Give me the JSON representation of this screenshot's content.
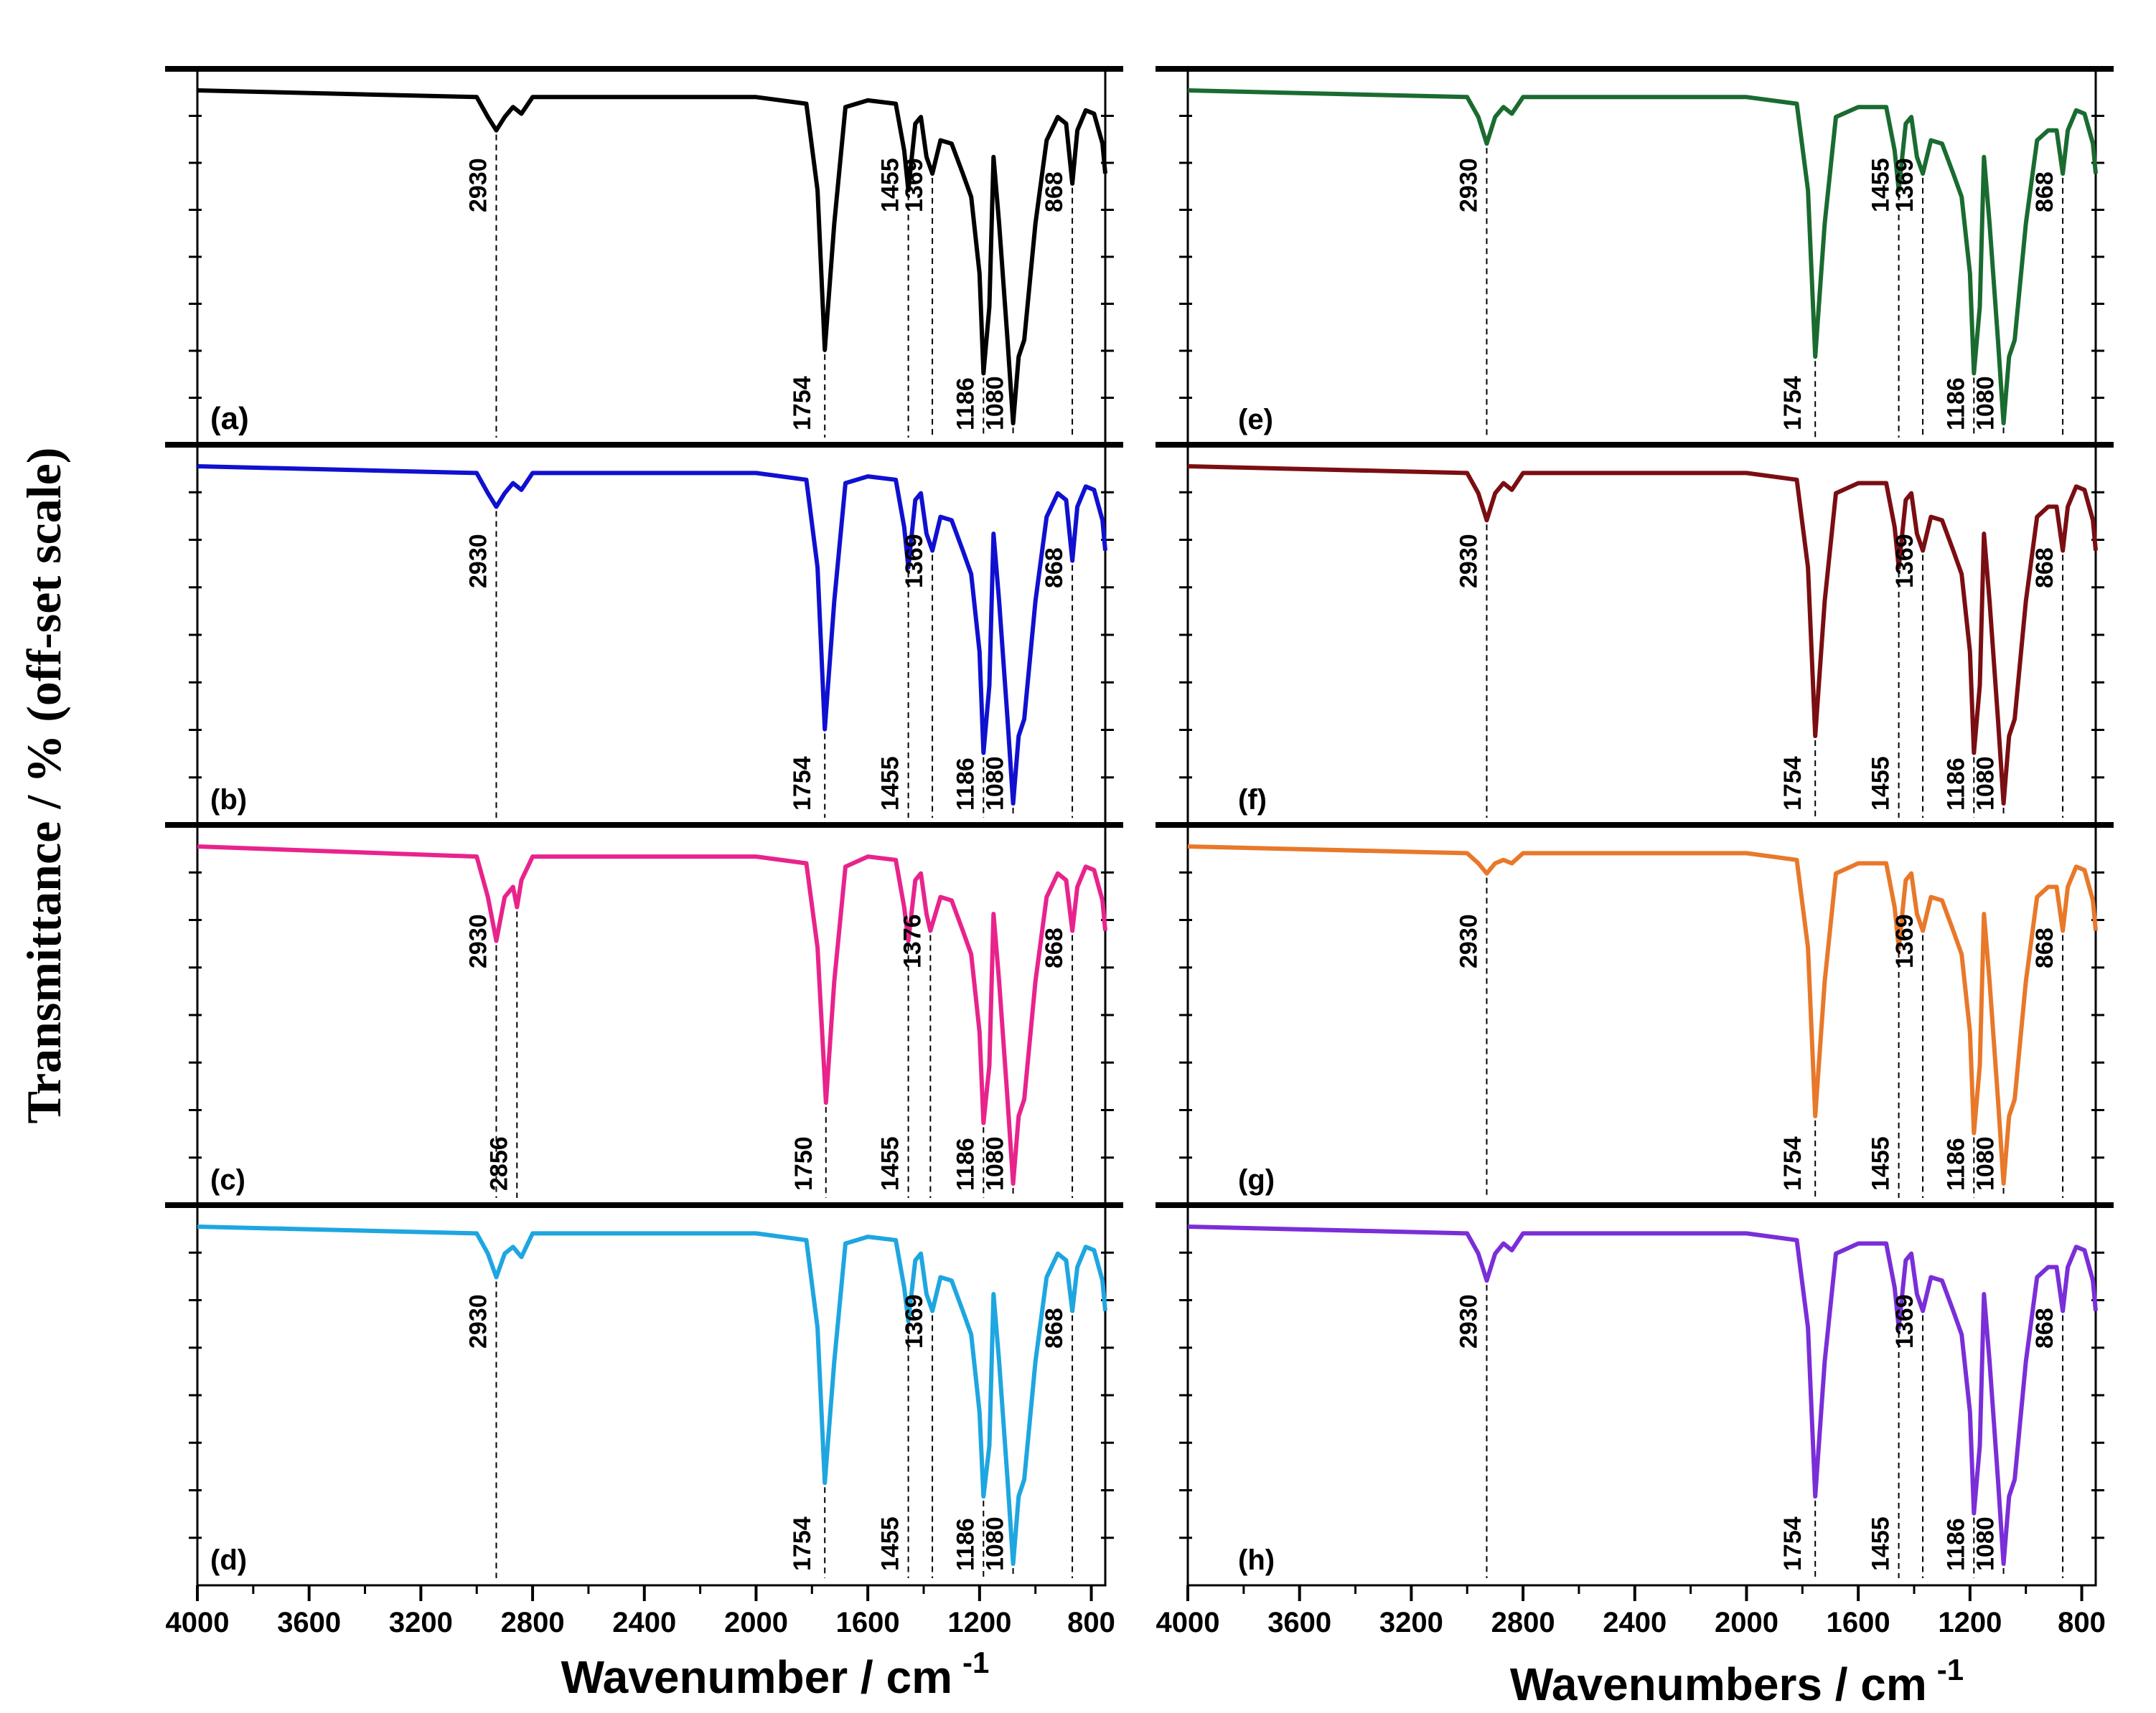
{
  "figure": {
    "ylabel": "Transmittance  /  % (off-set scale)",
    "left_xlabel": "Wavenumber / cm",
    "right_xlabel": "Wavenumbers / cm",
    "xlabel_superscript": "-1",
    "x_ticks": [
      "4000",
      "3600",
      "3200",
      "2800",
      "2400",
      "2000",
      "1600",
      "1200",
      "800"
    ]
  },
  "chart_data": [
    {
      "type": "line",
      "panel": "(a)",
      "color": "#000000",
      "xlim": [
        4000,
        750
      ],
      "title": "",
      "xlabel": "Wavenumber / cm-1",
      "ylabel": "Transmittance / % (off-set scale)",
      "annotations": [
        "2930",
        "1754",
        "1455",
        "1369",
        "1186",
        "1080",
        "868"
      ],
      "series": [
        {
          "name": "(a)",
          "x": [
            4000,
            3000,
            2960,
            2930,
            2900,
            2870,
            2840,
            2800,
            2000,
            1820,
            1780,
            1754,
            1720,
            1680,
            1600,
            1500,
            1470,
            1455,
            1430,
            1410,
            1390,
            1369,
            1340,
            1300,
            1260,
            1230,
            1200,
            1186,
            1165,
            1150,
            1130,
            1100,
            1080,
            1060,
            1040,
            1000,
            960,
            920,
            890,
            868,
            850,
            820,
            790,
            760,
            750
          ],
          "y": [
            0,
            2,
            8,
            12,
            8,
            5,
            7,
            2,
            2,
            4,
            30,
            78,
            40,
            5,
            3,
            4,
            18,
            30,
            10,
            8,
            20,
            25,
            15,
            16,
            25,
            32,
            55,
            85,
            65,
            20,
            40,
            75,
            100,
            80,
            75,
            40,
            15,
            8,
            10,
            28,
            12,
            6,
            7,
            16,
            25
          ]
        }
      ]
    },
    {
      "type": "line",
      "panel": "(b)",
      "color": "#1010d0",
      "xlim": [
        4000,
        750
      ],
      "annotations": [
        "2930",
        "1754",
        "1455",
        "1369",
        "1186",
        "1080",
        "868"
      ],
      "series": [
        {
          "name": "(b)",
          "x": [
            4000,
            3000,
            2960,
            2930,
            2900,
            2870,
            2840,
            2800,
            2000,
            1820,
            1780,
            1754,
            1720,
            1680,
            1600,
            1500,
            1470,
            1455,
            1430,
            1410,
            1390,
            1369,
            1340,
            1300,
            1260,
            1230,
            1200,
            1186,
            1165,
            1150,
            1130,
            1100,
            1080,
            1060,
            1040,
            1000,
            960,
            920,
            890,
            868,
            850,
            820,
            790,
            760,
            750
          ],
          "y": [
            0,
            2,
            8,
            12,
            8,
            5,
            7,
            2,
            2,
            4,
            30,
            78,
            40,
            5,
            3,
            4,
            18,
            30,
            10,
            8,
            20,
            25,
            15,
            16,
            25,
            32,
            55,
            85,
            65,
            20,
            40,
            75,
            100,
            80,
            75,
            40,
            15,
            8,
            10,
            28,
            12,
            6,
            7,
            16,
            25
          ]
        }
      ]
    },
    {
      "type": "line",
      "panel": "(c)",
      "color": "#e8238c",
      "xlim": [
        4000,
        750
      ],
      "annotations": [
        "2930",
        "2856",
        "1750",
        "1455",
        "1376",
        "1186",
        "1080",
        "868"
      ],
      "series": [
        {
          "name": "(c)",
          "x": [
            4000,
            3000,
            2960,
            2930,
            2900,
            2870,
            2856,
            2840,
            2800,
            2000,
            1820,
            1780,
            1750,
            1720,
            1680,
            1600,
            1500,
            1470,
            1455,
            1430,
            1410,
            1390,
            1376,
            1340,
            1300,
            1260,
            1230,
            1200,
            1186,
            1165,
            1150,
            1130,
            1100,
            1080,
            1060,
            1040,
            1000,
            960,
            920,
            890,
            868,
            850,
            820,
            790,
            760,
            750
          ],
          "y": [
            0,
            3,
            15,
            28,
            15,
            12,
            18,
            10,
            3,
            3,
            5,
            30,
            76,
            40,
            6,
            3,
            4,
            18,
            28,
            10,
            8,
            20,
            25,
            15,
            16,
            25,
            32,
            55,
            82,
            65,
            20,
            40,
            75,
            100,
            80,
            75,
            40,
            15,
            8,
            10,
            25,
            12,
            6,
            7,
            16,
            25
          ]
        }
      ]
    },
    {
      "type": "line",
      "panel": "(d)",
      "color": "#1ea6e0",
      "xlim": [
        4000,
        750
      ],
      "annotations": [
        "2930",
        "1754",
        "1455",
        "1369",
        "1186",
        "1080",
        "868"
      ],
      "series": [
        {
          "name": "(d)",
          "x": [
            4000,
            3000,
            2960,
            2930,
            2900,
            2870,
            2840,
            2800,
            2000,
            1820,
            1780,
            1754,
            1720,
            1680,
            1600,
            1500,
            1470,
            1455,
            1430,
            1410,
            1390,
            1369,
            1340,
            1300,
            1260,
            1230,
            1200,
            1186,
            1165,
            1150,
            1130,
            1100,
            1080,
            1060,
            1040,
            1000,
            960,
            920,
            890,
            868,
            850,
            820,
            790,
            760,
            750
          ],
          "y": [
            0,
            2,
            8,
            15,
            8,
            6,
            9,
            2,
            2,
            4,
            30,
            76,
            40,
            5,
            3,
            4,
            18,
            28,
            10,
            8,
            20,
            25,
            15,
            16,
            25,
            32,
            55,
            80,
            65,
            20,
            40,
            75,
            100,
            80,
            75,
            40,
            15,
            8,
            10,
            25,
            12,
            6,
            7,
            16,
            25
          ]
        }
      ]
    },
    {
      "type": "line",
      "panel": "(e)",
      "color": "#1a6b30",
      "xlim": [
        4000,
        750
      ],
      "annotations": [
        "2930",
        "1754",
        "1455",
        "1369",
        "1186",
        "1080",
        "868"
      ],
      "series": [
        {
          "name": "(e)",
          "x": [
            4000,
            3000,
            2960,
            2930,
            2900,
            2870,
            2840,
            2800,
            2000,
            1820,
            1780,
            1754,
            1720,
            1680,
            1600,
            1500,
            1470,
            1455,
            1430,
            1410,
            1390,
            1369,
            1340,
            1300,
            1260,
            1230,
            1200,
            1186,
            1165,
            1150,
            1130,
            1100,
            1080,
            1060,
            1040,
            1000,
            960,
            920,
            890,
            868,
            850,
            820,
            790,
            760,
            750
          ],
          "y": [
            0,
            2,
            8,
            16,
            8,
            5,
            7,
            2,
            2,
            4,
            30,
            80,
            40,
            8,
            5,
            5,
            18,
            30,
            10,
            8,
            20,
            25,
            15,
            16,
            25,
            32,
            55,
            85,
            65,
            20,
            40,
            75,
            100,
            80,
            75,
            40,
            15,
            12,
            12,
            25,
            12,
            6,
            7,
            16,
            25
          ]
        }
      ]
    },
    {
      "type": "line",
      "panel": "(f)",
      "color": "#7a0e12",
      "xlim": [
        4000,
        750
      ],
      "annotations": [
        "2930",
        "1754",
        "1455",
        "1369",
        "1186",
        "1080",
        "868"
      ],
      "series": [
        {
          "name": "(f)",
          "x": [
            4000,
            3000,
            2960,
            2930,
            2900,
            2870,
            2840,
            2800,
            2000,
            1820,
            1780,
            1754,
            1720,
            1680,
            1600,
            1500,
            1470,
            1455,
            1430,
            1410,
            1390,
            1369,
            1340,
            1300,
            1260,
            1230,
            1200,
            1186,
            1165,
            1150,
            1130,
            1100,
            1080,
            1060,
            1040,
            1000,
            960,
            920,
            890,
            868,
            850,
            820,
            790,
            760,
            750
          ],
          "y": [
            0,
            2,
            8,
            16,
            8,
            5,
            7,
            2,
            2,
            4,
            30,
            80,
            40,
            8,
            5,
            5,
            18,
            30,
            10,
            8,
            20,
            25,
            15,
            16,
            25,
            32,
            55,
            85,
            65,
            20,
            40,
            75,
            100,
            80,
            75,
            40,
            15,
            12,
            12,
            25,
            12,
            6,
            7,
            16,
            25
          ]
        }
      ]
    },
    {
      "type": "line",
      "panel": "(g)",
      "color": "#e8782a",
      "xlim": [
        4000,
        750
      ],
      "annotations": [
        "2930",
        "1754",
        "1455",
        "1369",
        "1186",
        "1080",
        "868"
      ],
      "series": [
        {
          "name": "(g)",
          "x": [
            4000,
            3000,
            2960,
            2930,
            2900,
            2870,
            2840,
            2800,
            2000,
            1820,
            1780,
            1754,
            1720,
            1680,
            1600,
            1500,
            1470,
            1455,
            1430,
            1410,
            1390,
            1369,
            1340,
            1300,
            1260,
            1230,
            1200,
            1186,
            1165,
            1150,
            1130,
            1100,
            1080,
            1060,
            1040,
            1000,
            960,
            920,
            890,
            868,
            850,
            820,
            790,
            760,
            750
          ],
          "y": [
            0,
            2,
            5,
            8,
            5,
            4,
            5,
            2,
            2,
            4,
            30,
            80,
            40,
            8,
            5,
            5,
            18,
            30,
            10,
            8,
            20,
            25,
            15,
            16,
            25,
            32,
            55,
            85,
            65,
            20,
            40,
            75,
            100,
            80,
            75,
            40,
            15,
            12,
            12,
            25,
            12,
            6,
            7,
            16,
            25
          ]
        }
      ]
    },
    {
      "type": "line",
      "panel": "(h)",
      "color": "#7a2ed8",
      "xlim": [
        4000,
        750
      ],
      "annotations": [
        "2930",
        "1754",
        "1455",
        "1369",
        "1186",
        "1080",
        "868"
      ],
      "series": [
        {
          "name": "(h)",
          "x": [
            4000,
            3000,
            2960,
            2930,
            2900,
            2870,
            2840,
            2800,
            2000,
            1820,
            1780,
            1754,
            1720,
            1680,
            1600,
            1500,
            1470,
            1455,
            1430,
            1410,
            1390,
            1369,
            1340,
            1300,
            1260,
            1230,
            1200,
            1186,
            1165,
            1150,
            1130,
            1100,
            1080,
            1060,
            1040,
            1000,
            960,
            920,
            890,
            868,
            850,
            820,
            790,
            760,
            750
          ],
          "y": [
            0,
            2,
            8,
            16,
            8,
            5,
            7,
            2,
            2,
            4,
            30,
            80,
            40,
            8,
            5,
            5,
            18,
            30,
            10,
            8,
            20,
            25,
            15,
            16,
            25,
            32,
            55,
            85,
            65,
            20,
            40,
            75,
            100,
            80,
            75,
            40,
            15,
            12,
            12,
            25,
            12,
            6,
            7,
            16,
            25
          ]
        }
      ]
    }
  ]
}
